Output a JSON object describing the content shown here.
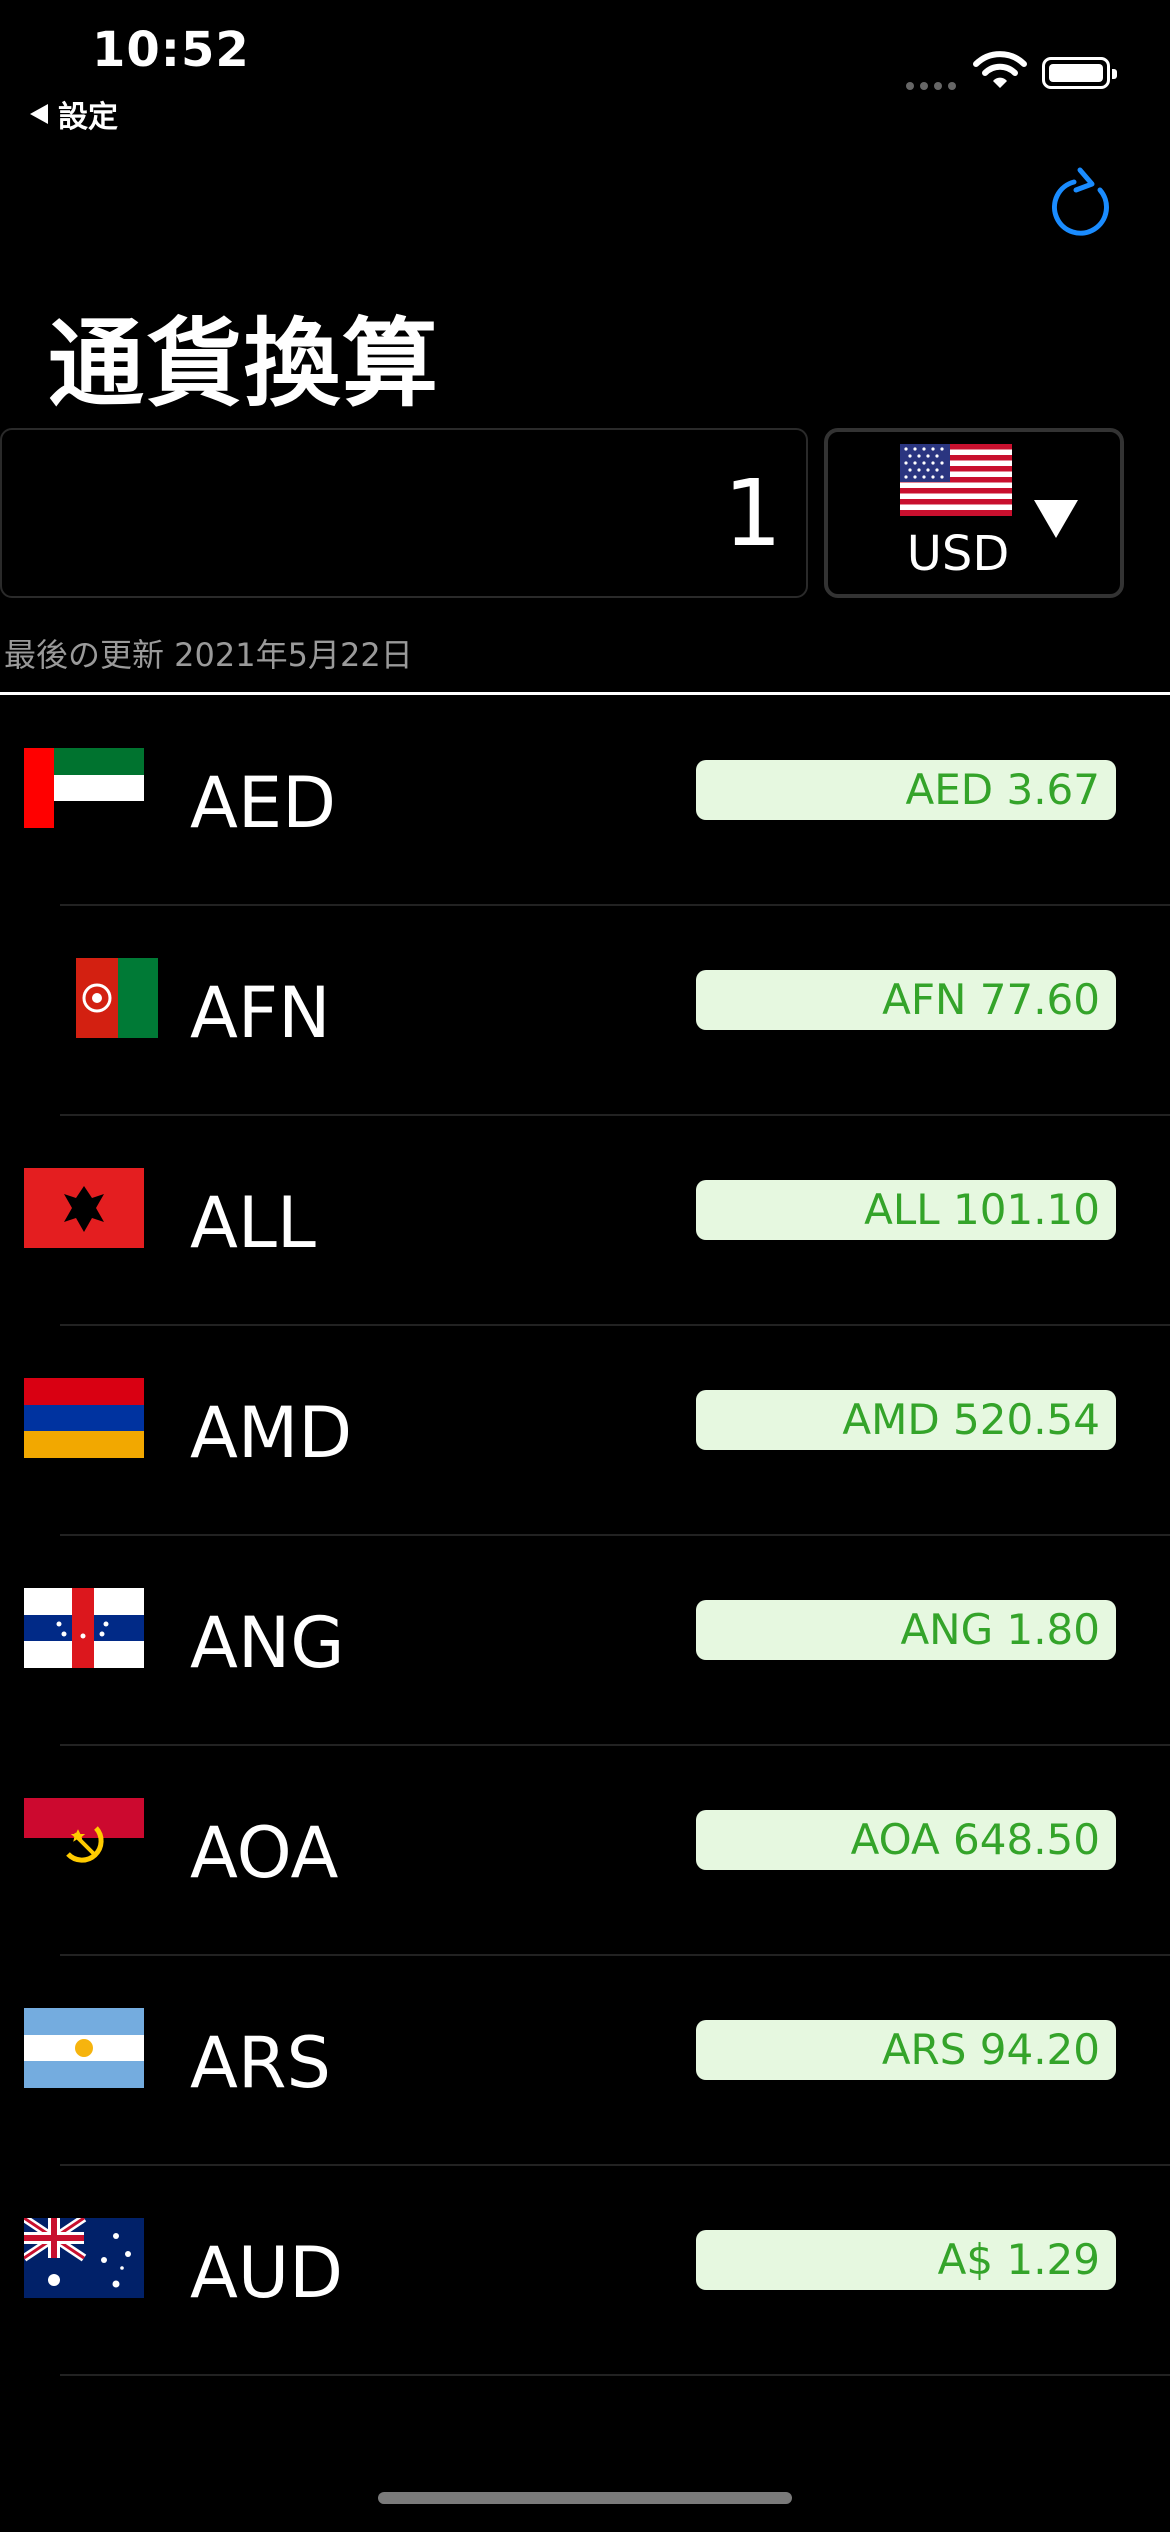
{
  "status_bar": {
    "time": "10:52",
    "back_label": "設定"
  },
  "header": {
    "title": "通貨換算"
  },
  "converter": {
    "amount": "1",
    "base_currency": "USD",
    "last_updated": "最後の更新 2021年5月22日"
  },
  "colors": {
    "accent": "#1a8cff",
    "rate_bg": "#e6f8e0",
    "rate_text": "#34a42a"
  },
  "currencies": [
    {
      "code": "AED",
      "rate": "AED 3.67",
      "flag": "uae-flag-icon"
    },
    {
      "code": "AFN",
      "rate": "AFN 77.60",
      "flag": "afghanistan-flag-icon"
    },
    {
      "code": "ALL",
      "rate": "ALL 101.10",
      "flag": "albania-flag-icon"
    },
    {
      "code": "AMD",
      "rate": "AMD 520.54",
      "flag": "armenia-flag-icon"
    },
    {
      "code": "ANG",
      "rate": "ANG 1.80",
      "flag": "netherlands-antilles-flag-icon"
    },
    {
      "code": "AOA",
      "rate": "AOA 648.50",
      "flag": "angola-flag-icon"
    },
    {
      "code": "ARS",
      "rate": "ARS 94.20",
      "flag": "argentina-flag-icon"
    },
    {
      "code": "AUD",
      "rate": "A$ 1.29",
      "flag": "australia-flag-icon"
    }
  ]
}
